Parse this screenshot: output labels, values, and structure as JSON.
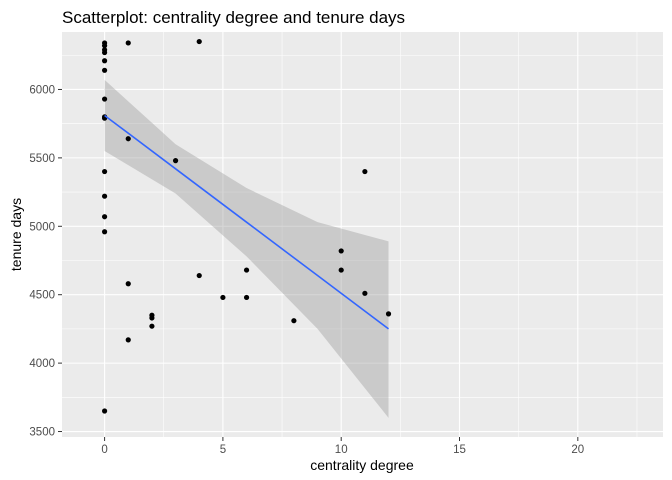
{
  "chart_data": {
    "type": "scatter",
    "title": "Scatterplot: centrality degree and tenure days",
    "xlabel": "centrality degree",
    "ylabel": "tenure days",
    "xlim": [
      -1.8,
      23.6
    ],
    "ylim": [
      3460,
      6420
    ],
    "x_ticks": [
      0,
      5,
      10,
      15,
      20
    ],
    "y_ticks": [
      3500,
      4000,
      4500,
      5000,
      5500,
      6000
    ],
    "grid": true,
    "legend": "none",
    "colors": {
      "panel": "#ebebeb",
      "grid": "#ffffff",
      "points": "#000000",
      "fit_line": "#3366ff",
      "confidence_band": "#999999"
    },
    "points": [
      {
        "x": 0,
        "y": 6340
      },
      {
        "x": 0,
        "y": 6320
      },
      {
        "x": 0,
        "y": 6290
      },
      {
        "x": 0,
        "y": 6270
      },
      {
        "x": 0,
        "y": 6210
      },
      {
        "x": 0,
        "y": 6140
      },
      {
        "x": 0,
        "y": 5930
      },
      {
        "x": 0,
        "y": 5800
      },
      {
        "x": 0,
        "y": 5790
      },
      {
        "x": 0,
        "y": 5400
      },
      {
        "x": 0,
        "y": 5220
      },
      {
        "x": 0,
        "y": 5070
      },
      {
        "x": 0,
        "y": 4960
      },
      {
        "x": 0,
        "y": 3650
      },
      {
        "x": 1,
        "y": 6340
      },
      {
        "x": 1,
        "y": 5640
      },
      {
        "x": 1,
        "y": 4580
      },
      {
        "x": 1,
        "y": 4170
      },
      {
        "x": 2,
        "y": 4350
      },
      {
        "x": 2,
        "y": 4330
      },
      {
        "x": 2,
        "y": 4270
      },
      {
        "x": 3,
        "y": 5480
      },
      {
        "x": 4,
        "y": 6350
      },
      {
        "x": 4,
        "y": 4640
      },
      {
        "x": 5,
        "y": 4480
      },
      {
        "x": 6,
        "y": 4680
      },
      {
        "x": 6,
        "y": 4480
      },
      {
        "x": 8,
        "y": 4310
      },
      {
        "x": 10,
        "y": 4820
      },
      {
        "x": 10,
        "y": 4680
      },
      {
        "x": 11,
        "y": 5400
      },
      {
        "x": 11,
        "y": 4510
      },
      {
        "x": 12,
        "y": 4360
      }
    ],
    "fit": {
      "x": [
        0,
        3,
        6,
        9,
        12
      ],
      "y": [
        5810,
        5420,
        5030,
        4640,
        4250
      ],
      "ci_lower": [
        5550,
        5240,
        4780,
        4250,
        3600
      ],
      "ci_upper": [
        6070,
        5600,
        5280,
        5030,
        4890
      ]
    }
  }
}
